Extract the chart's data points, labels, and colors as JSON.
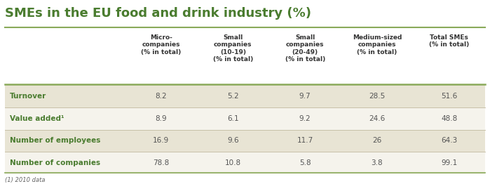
{
  "title": "SMEs in the EU food and drink industry (%)",
  "title_color": "#4a7c2f",
  "title_fontsize": 13,
  "col_headers": [
    "Micro-\ncompanies\n(% in total)",
    "Small\ncompanies\n(10-19)\n(% in total)",
    "Small\ncompanies\n(20-49)\n(% in total)",
    "Medium-sized\ncompanies\n(% in total)",
    "Total SMEs\n(% in total)"
  ],
  "row_labels": [
    "Turnover",
    "Value added¹",
    "Number of employees",
    "Number of companies"
  ],
  "data": [
    [
      "8.2",
      "5.2",
      "9.7",
      "28.5",
      "51.6"
    ],
    [
      "8.9",
      "6.1",
      "9.2",
      "24.6",
      "48.8"
    ],
    [
      "16.9",
      "9.6",
      "11.7",
      "26",
      "64.3"
    ],
    [
      "78.8",
      "10.8",
      "5.8",
      "3.8",
      "99.1"
    ]
  ],
  "footnote": "(1) 2010 data",
  "bg_color_odd": "#e8e4d4",
  "bg_color_even": "#f5f3ec",
  "row_label_color": "#4a7c2f",
  "data_color": "#555555",
  "separator_color": "#8aaa5a",
  "row_sep_color": "#c8c0a8",
  "title_line_color": "#8aaa5a"
}
